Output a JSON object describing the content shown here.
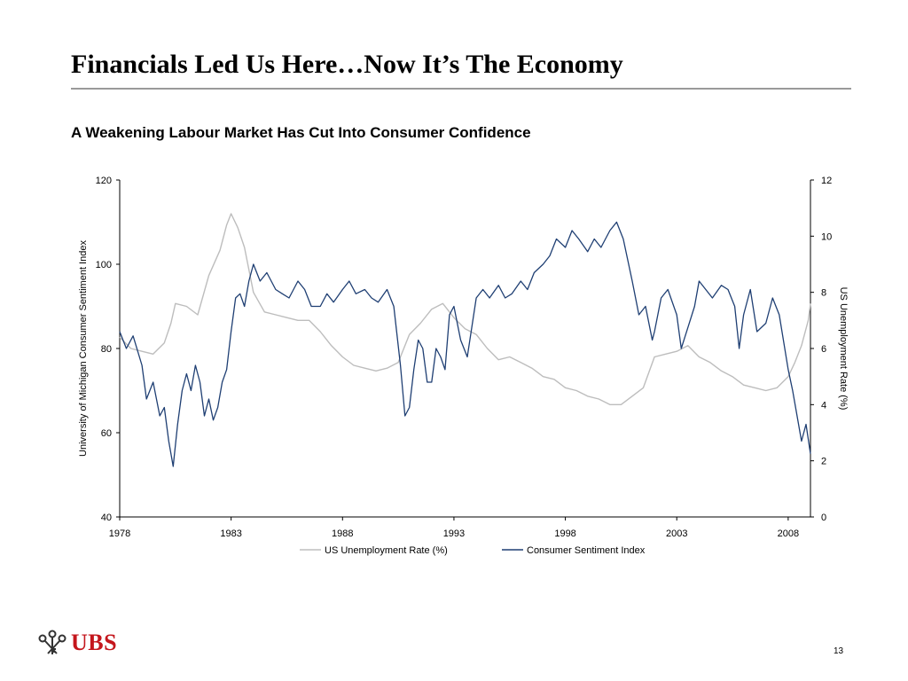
{
  "slide": {
    "title": "Financials Led Us Here…Now It’s The Economy",
    "subtitle": "A Weakening Labour Market Has Cut Into Consumer Confidence",
    "logo_text": "UBS",
    "page_number": "13"
  },
  "colors": {
    "unemployment": "#bdbdbd",
    "sentiment": "#1f3f73",
    "logo_red": "#c4161c",
    "rule": "#9a9a9a"
  },
  "chart_data": {
    "type": "line",
    "title": "",
    "xlabel": "",
    "ylabel": "University of Michigan Consumer Sentiment Index",
    "y2label": "US Unemployment Rate (%)",
    "xlim": [
      1978,
      2009
    ],
    "ylim": [
      40,
      120
    ],
    "y2lim": [
      0,
      12
    ],
    "x_ticks": [
      "1978",
      "1983",
      "1988",
      "1993",
      "1998",
      "2003",
      "2008"
    ],
    "y_ticks": [
      "40",
      "60",
      "80",
      "100",
      "120"
    ],
    "y2_ticks": [
      "0",
      "2",
      "4",
      "6",
      "8",
      "10",
      "12"
    ],
    "grid": false,
    "legend_position": "bottom",
    "series": [
      {
        "name": "US Unemployment Rate (%)",
        "axis": "right",
        "x": [
          1978.0,
          1978.5,
          1979.0,
          1979.5,
          1980.0,
          1980.3,
          1980.5,
          1981.0,
          1981.5,
          1982.0,
          1982.5,
          1982.8,
          1983.0,
          1983.3,
          1983.6,
          1984.0,
          1984.5,
          1985.0,
          1985.5,
          1986.0,
          1986.5,
          1987.0,
          1987.5,
          1988.0,
          1988.5,
          1989.0,
          1989.5,
          1990.0,
          1990.5,
          1991.0,
          1991.5,
          1992.0,
          1992.5,
          1993.0,
          1993.5,
          1994.0,
          1994.5,
          1995.0,
          1995.5,
          1996.0,
          1996.5,
          1997.0,
          1997.5,
          1998.0,
          1998.5,
          1999.0,
          1999.5,
          2000.0,
          2000.5,
          2001.0,
          2001.5,
          2002.0,
          2002.5,
          2003.0,
          2003.5,
          2004.0,
          2004.5,
          2005.0,
          2005.5,
          2006.0,
          2006.5,
          2007.0,
          2007.5,
          2008.0,
          2008.3,
          2008.6,
          2008.9,
          2009.0
        ],
        "values": [
          6.4,
          6.0,
          5.9,
          5.8,
          6.2,
          6.9,
          7.6,
          7.5,
          7.2,
          8.6,
          9.5,
          10.4,
          10.8,
          10.3,
          9.6,
          8.0,
          7.3,
          7.2,
          7.1,
          7.0,
          7.0,
          6.6,
          6.1,
          5.7,
          5.4,
          5.3,
          5.2,
          5.3,
          5.5,
          6.5,
          6.9,
          7.4,
          7.6,
          7.1,
          6.7,
          6.5,
          6.0,
          5.6,
          5.7,
          5.5,
          5.3,
          5.0,
          4.9,
          4.6,
          4.5,
          4.3,
          4.2,
          4.0,
          4.0,
          4.3,
          4.6,
          5.7,
          5.8,
          5.9,
          6.1,
          5.7,
          5.5,
          5.2,
          5.0,
          4.7,
          4.6,
          4.5,
          4.6,
          5.0,
          5.5,
          6.1,
          7.0,
          7.6
        ]
      },
      {
        "name": "Consumer Sentiment Index",
        "axis": "left",
        "x": [
          1978.0,
          1978.3,
          1978.6,
          1979.0,
          1979.2,
          1979.5,
          1979.8,
          1980.0,
          1980.2,
          1980.4,
          1980.6,
          1980.8,
          1981.0,
          1981.2,
          1981.4,
          1981.6,
          1981.8,
          1982.0,
          1982.2,
          1982.4,
          1982.6,
          1982.8,
          1983.0,
          1983.2,
          1983.4,
          1983.6,
          1983.8,
          1984.0,
          1984.3,
          1984.6,
          1985.0,
          1985.3,
          1985.6,
          1986.0,
          1986.3,
          1986.6,
          1987.0,
          1987.3,
          1987.6,
          1988.0,
          1988.3,
          1988.6,
          1989.0,
          1989.3,
          1989.6,
          1990.0,
          1990.3,
          1990.6,
          1990.8,
          1991.0,
          1991.2,
          1991.4,
          1991.6,
          1991.8,
          1992.0,
          1992.2,
          1992.4,
          1992.6,
          1992.8,
          1993.0,
          1993.3,
          1993.6,
          1994.0,
          1994.3,
          1994.6,
          1995.0,
          1995.3,
          1995.6,
          1996.0,
          1996.3,
          1996.6,
          1997.0,
          1997.3,
          1997.6,
          1998.0,
          1998.3,
          1998.6,
          1999.0,
          1999.3,
          1999.6,
          2000.0,
          2000.3,
          2000.6,
          2001.0,
          2001.3,
          2001.6,
          2001.9,
          2002.0,
          2002.3,
          2002.6,
          2003.0,
          2003.2,
          2003.5,
          2003.8,
          2004.0,
          2004.3,
          2004.6,
          2005.0,
          2005.3,
          2005.6,
          2005.8,
          2006.0,
          2006.3,
          2006.6,
          2007.0,
          2007.3,
          2007.6,
          2008.0,
          2008.2,
          2008.4,
          2008.6,
          2008.8,
          2009.0
        ],
        "values": [
          84,
          80,
          83,
          76,
          68,
          72,
          64,
          66,
          58,
          52,
          62,
          70,
          74,
          70,
          76,
          72,
          64,
          68,
          63,
          66,
          72,
          75,
          84,
          92,
          93,
          90,
          96,
          100,
          96,
          98,
          94,
          93,
          92,
          96,
          94,
          90,
          90,
          93,
          91,
          94,
          96,
          93,
          94,
          92,
          91,
          94,
          90,
          76,
          64,
          66,
          75,
          82,
          80,
          72,
          72,
          80,
          78,
          75,
          88,
          90,
          82,
          78,
          92,
          94,
          92,
          95,
          92,
          93,
          96,
          94,
          98,
          100,
          102,
          106,
          104,
          108,
          106,
          103,
          106,
          104,
          108,
          110,
          106,
          96,
          88,
          90,
          82,
          84,
          92,
          94,
          88,
          80,
          85,
          90,
          96,
          94,
          92,
          95,
          94,
          90,
          80,
          88,
          94,
          84,
          86,
          92,
          88,
          75,
          70,
          64,
          58,
          62,
          55
        ]
      }
    ]
  }
}
